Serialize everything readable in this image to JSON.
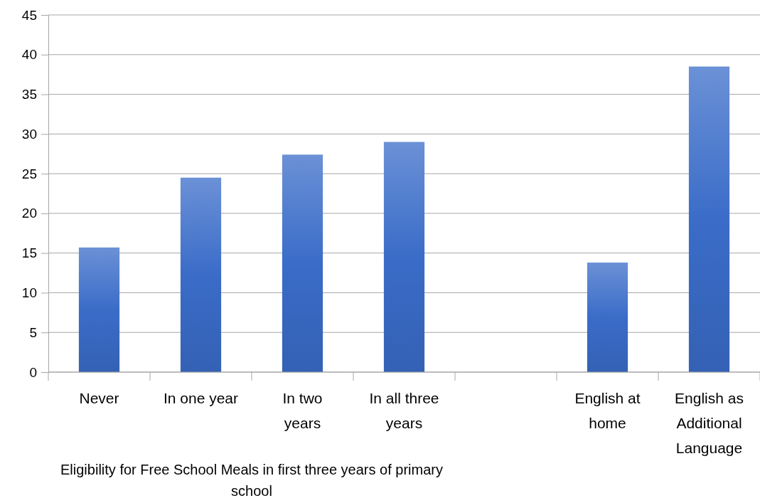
{
  "chart_data": {
    "type": "bar",
    "xlabel": "Eligibility for Free School Meals in first three years of primary school",
    "categories": [
      "Never",
      "In one year",
      "In two years",
      "In all three years",
      null,
      "English at home",
      "English as Additional Language"
    ],
    "values": [
      15.7,
      24.5,
      27.4,
      29.0,
      null,
      13.8,
      38.5
    ],
    "color": "#3a6cc8",
    "ylim": [
      0,
      45
    ],
    "yticks": [
      0,
      5,
      10,
      15,
      20,
      25,
      30,
      35,
      40,
      45
    ],
    "grid": "y"
  }
}
